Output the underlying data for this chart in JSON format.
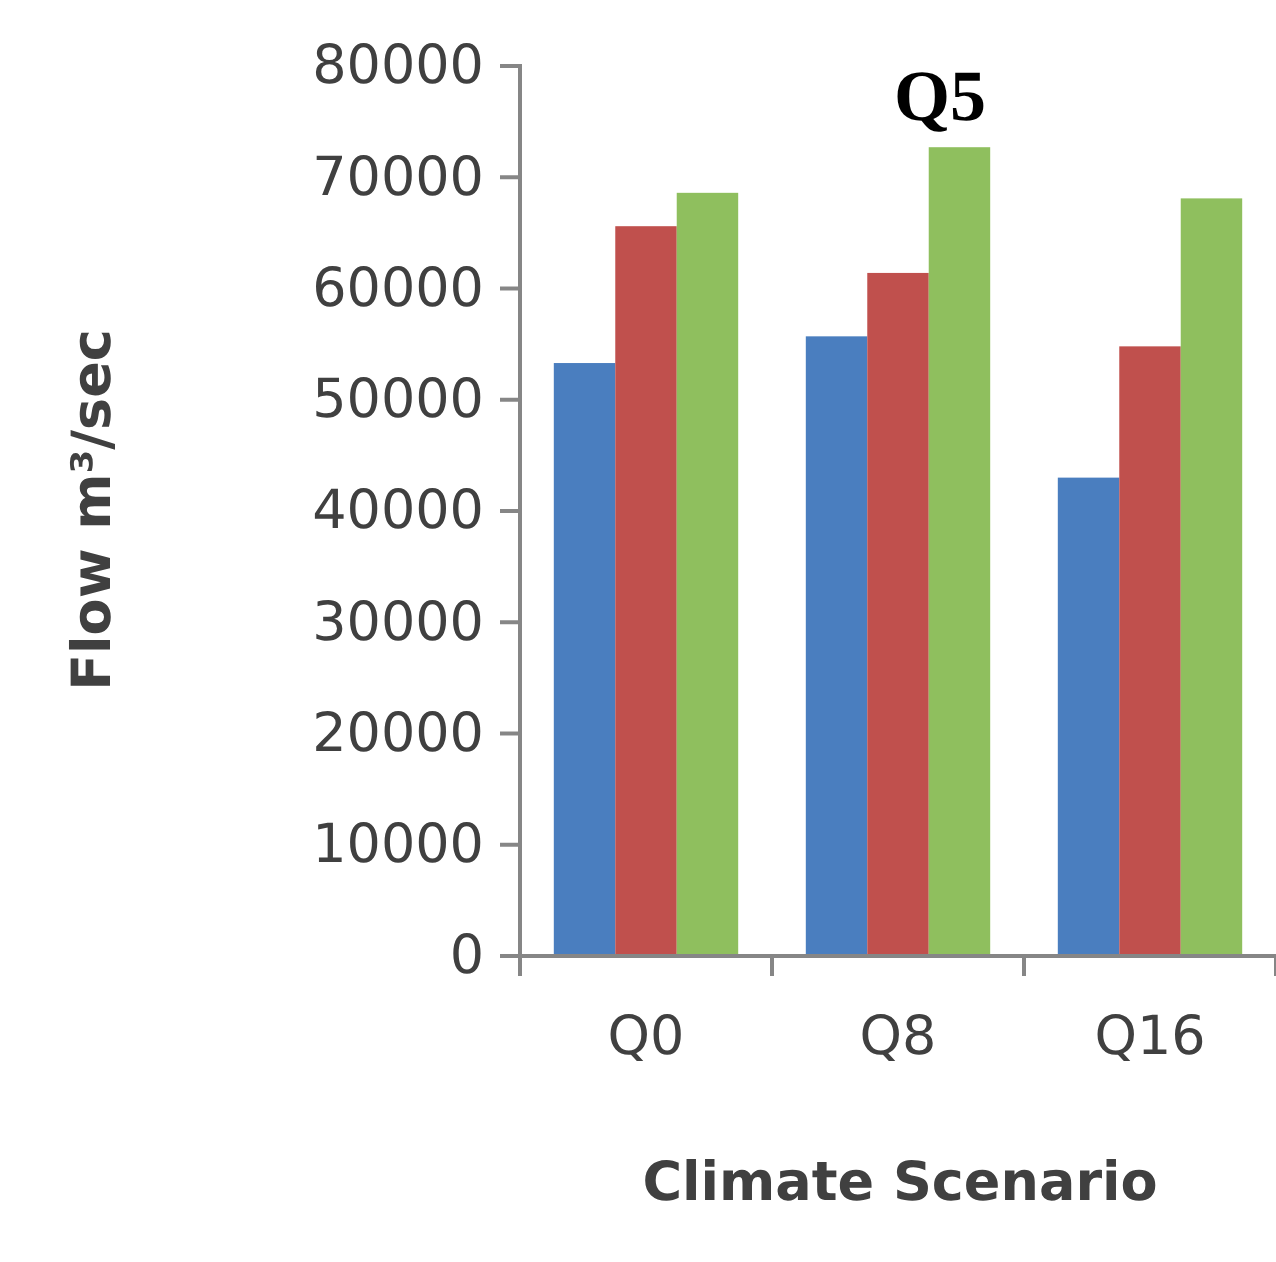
{
  "chart_data": {
    "type": "bar",
    "title": "Q5",
    "xlabel": "Climate Scenario",
    "ylabel": "Flow m³/sec",
    "categories": [
      "Q0",
      "Q8",
      "Q16"
    ],
    "series": [
      {
        "color": "#4a7ebf",
        "values": [
          53300,
          55700,
          43000
        ]
      },
      {
        "color": "#c0504d",
        "values": [
          65600,
          61400,
          54800
        ]
      },
      {
        "color": "#8fbf5e",
        "values": [
          68600,
          72700,
          68100
        ]
      }
    ],
    "ylim": [
      0,
      80000
    ],
    "yticks": [
      0,
      10000,
      20000,
      30000,
      40000,
      50000,
      60000,
      70000,
      80000
    ],
    "grid": false
  }
}
